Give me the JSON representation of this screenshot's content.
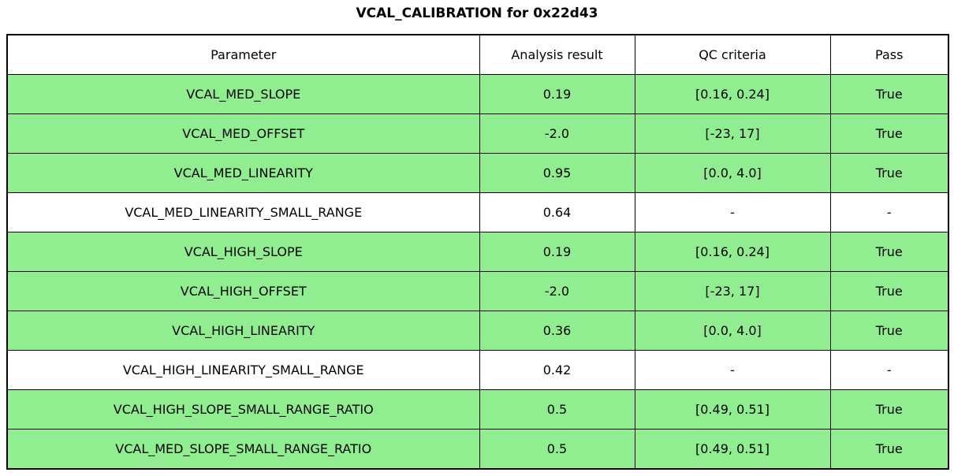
{
  "title": "VCAL_CALIBRATION for 0x22d43",
  "chart_data": {
    "type": "table",
    "title": "VCAL_CALIBRATION for 0x22d43",
    "columns": [
      "Parameter",
      "Analysis result",
      "QC criteria",
      "Pass"
    ],
    "rows": [
      {
        "parameter": "VCAL_MED_SLOPE",
        "analysis_result": "0.19",
        "qc_criteria": "[0.16, 0.24]",
        "pass": "True",
        "highlighted": true
      },
      {
        "parameter": "VCAL_MED_OFFSET",
        "analysis_result": "-2.0",
        "qc_criteria": "[-23, 17]",
        "pass": "True",
        "highlighted": true
      },
      {
        "parameter": "VCAL_MED_LINEARITY",
        "analysis_result": "0.95",
        "qc_criteria": "[0.0, 4.0]",
        "pass": "True",
        "highlighted": true
      },
      {
        "parameter": "VCAL_MED_LINEARITY_SMALL_RANGE",
        "analysis_result": "0.64",
        "qc_criteria": "-",
        "pass": "-",
        "highlighted": false
      },
      {
        "parameter": "VCAL_HIGH_SLOPE",
        "analysis_result": "0.19",
        "qc_criteria": "[0.16, 0.24]",
        "pass": "True",
        "highlighted": true
      },
      {
        "parameter": "VCAL_HIGH_OFFSET",
        "analysis_result": "-2.0",
        "qc_criteria": "[-23, 17]",
        "pass": "True",
        "highlighted": true
      },
      {
        "parameter": "VCAL_HIGH_LINEARITY",
        "analysis_result": "0.36",
        "qc_criteria": "[0.0, 4.0]",
        "pass": "True",
        "highlighted": true
      },
      {
        "parameter": "VCAL_HIGH_LINEARITY_SMALL_RANGE",
        "analysis_result": "0.42",
        "qc_criteria": "-",
        "pass": "-",
        "highlighted": false
      },
      {
        "parameter": "VCAL_HIGH_SLOPE_SMALL_RANGE_RATIO",
        "analysis_result": "0.5",
        "qc_criteria": "[0.49, 0.51]",
        "pass": "True",
        "highlighted": true
      },
      {
        "parameter": "VCAL_MED_SLOPE_SMALL_RANGE_RATIO",
        "analysis_result": "0.5",
        "qc_criteria": "[0.49, 0.51]",
        "pass": "True",
        "highlighted": true
      }
    ],
    "colors": {
      "pass_row_bg": "#90EE90",
      "default_row_bg": "#FFFFFF",
      "header_bg": "#FFFFFF",
      "border": "#000000"
    }
  }
}
